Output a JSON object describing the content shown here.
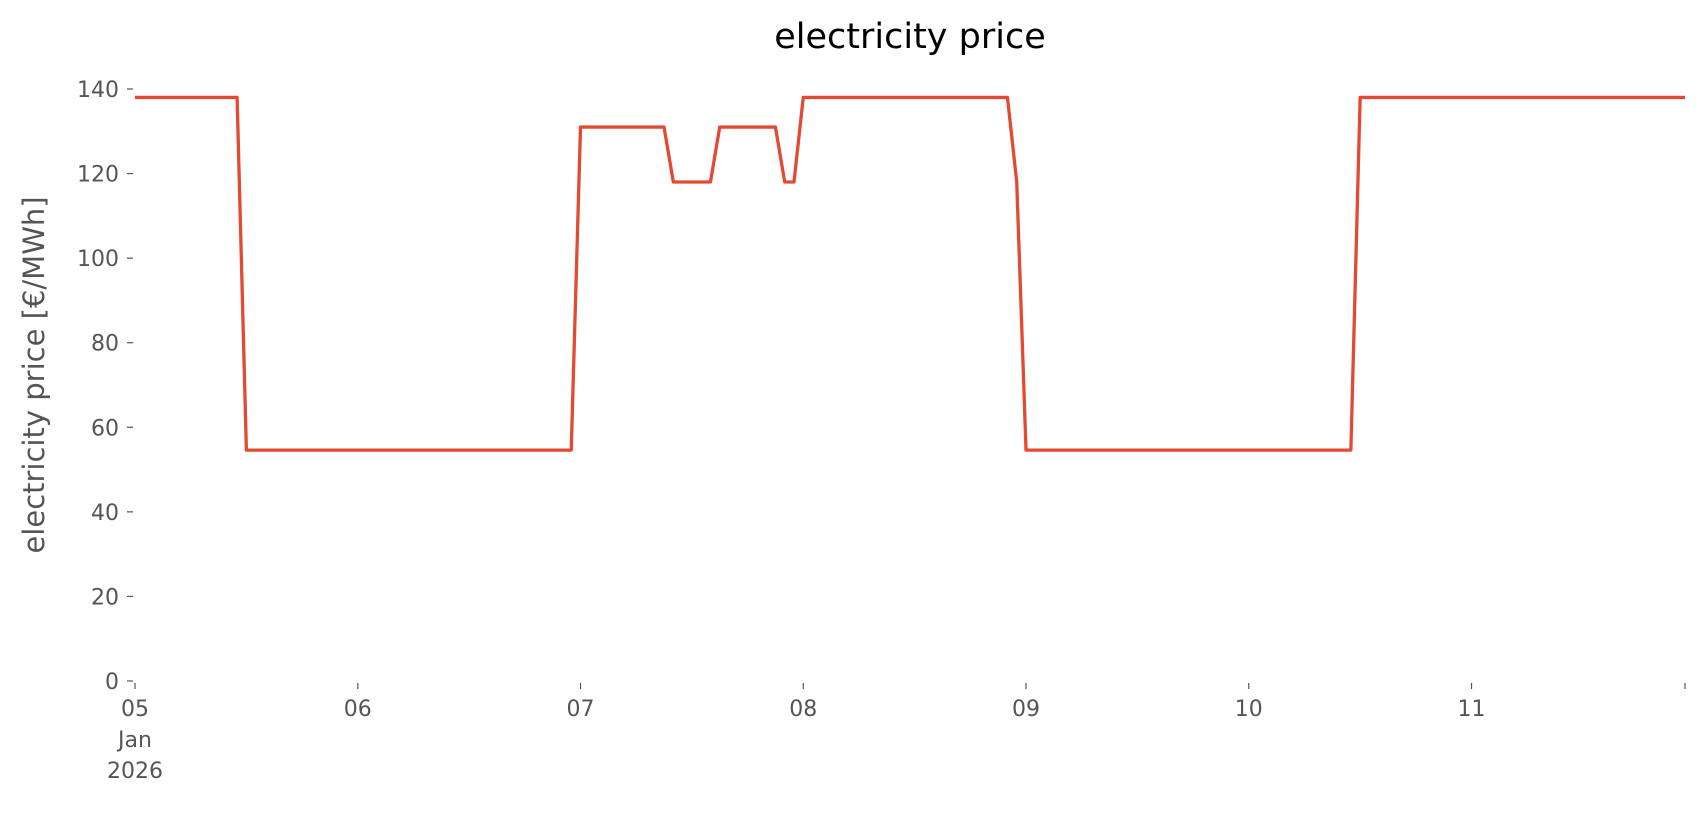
{
  "chart_data": {
    "type": "line",
    "title": "electricity price",
    "ylabel": "electricity price [€/MWh]",
    "x": [
      "2026-01-05T00:00",
      "2026-01-05T11:00",
      "2026-01-05T12:00",
      "2026-01-06T23:00",
      "2026-01-07T00:00",
      "2026-01-07T09:00",
      "2026-01-07T10:00",
      "2026-01-07T14:00",
      "2026-01-07T15:00",
      "2026-01-07T21:00",
      "2026-01-07T22:00",
      "2026-01-07T23:00",
      "2026-01-08T00:00",
      "2026-01-08T22:00",
      "2026-01-08T23:00",
      "2026-01-09T00:00",
      "2026-01-10T11:00",
      "2026-01-10T12:00",
      "2026-01-11T23:00"
    ],
    "series": [
      {
        "name": "electricity price",
        "color": "#e24a33",
        "values": [
          138,
          138,
          54.6,
          54.6,
          131,
          131,
          118,
          118,
          131,
          131,
          118,
          118,
          138,
          138,
          118,
          54.6,
          54.6,
          138,
          138
        ]
      }
    ],
    "xlim": [
      "2026-01-05T00:00",
      "2026-01-11T23:00"
    ],
    "xticks": [
      {
        "value": "2026-01-05T00:00",
        "label": "05\nJan\n2026"
      },
      {
        "value": "2026-01-06T00:00",
        "label": "06"
      },
      {
        "value": "2026-01-07T00:00",
        "label": "07"
      },
      {
        "value": "2026-01-08T00:00",
        "label": "08"
      },
      {
        "value": "2026-01-09T00:00",
        "label": "09"
      },
      {
        "value": "2026-01-10T00:00",
        "label": "10"
      },
      {
        "value": "2026-01-11T00:00",
        "label": "11"
      }
    ],
    "ylim": [
      0,
      140
    ],
    "yticks": [
      0,
      20,
      40,
      60,
      80,
      100,
      120,
      140
    ],
    "grid": false
  }
}
